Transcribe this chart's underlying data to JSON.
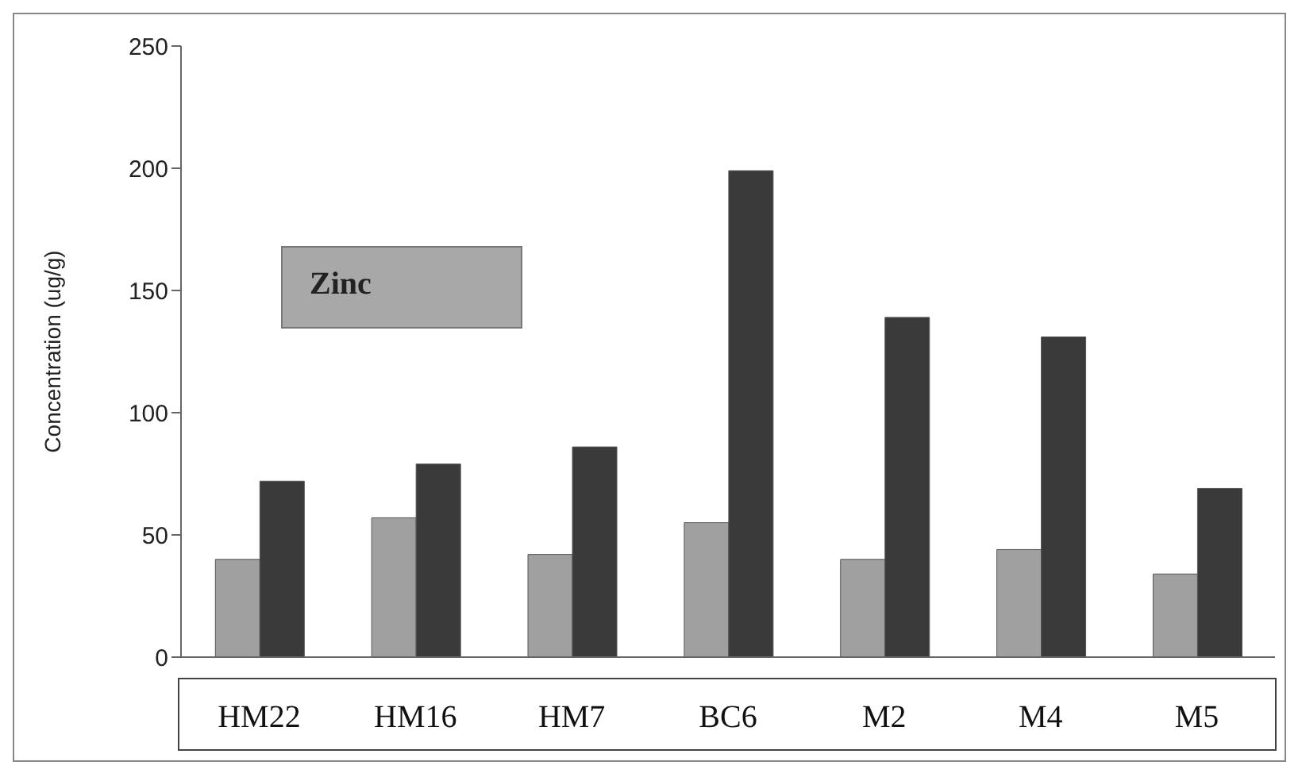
{
  "chart_data": {
    "type": "bar",
    "ylabel": "Concentration (ug/g)",
    "annotations": [
      "Zinc"
    ],
    "categories": [
      "HM22",
      "HM16",
      "HM7",
      "BC6",
      "M2",
      "M4",
      "M5"
    ],
    "series": [
      {
        "color": "#a0a0a0",
        "values": [
          40,
          57,
          42,
          55,
          40,
          44,
          34
        ]
      },
      {
        "color": "#3a3a3a",
        "values": [
          72,
          79,
          86,
          199,
          139,
          131,
          69
        ]
      }
    ],
    "ylim": [
      0,
      250
    ],
    "yticks": [
      0,
      50,
      100,
      150,
      200,
      250
    ],
    "grid": false,
    "legend": false
  }
}
